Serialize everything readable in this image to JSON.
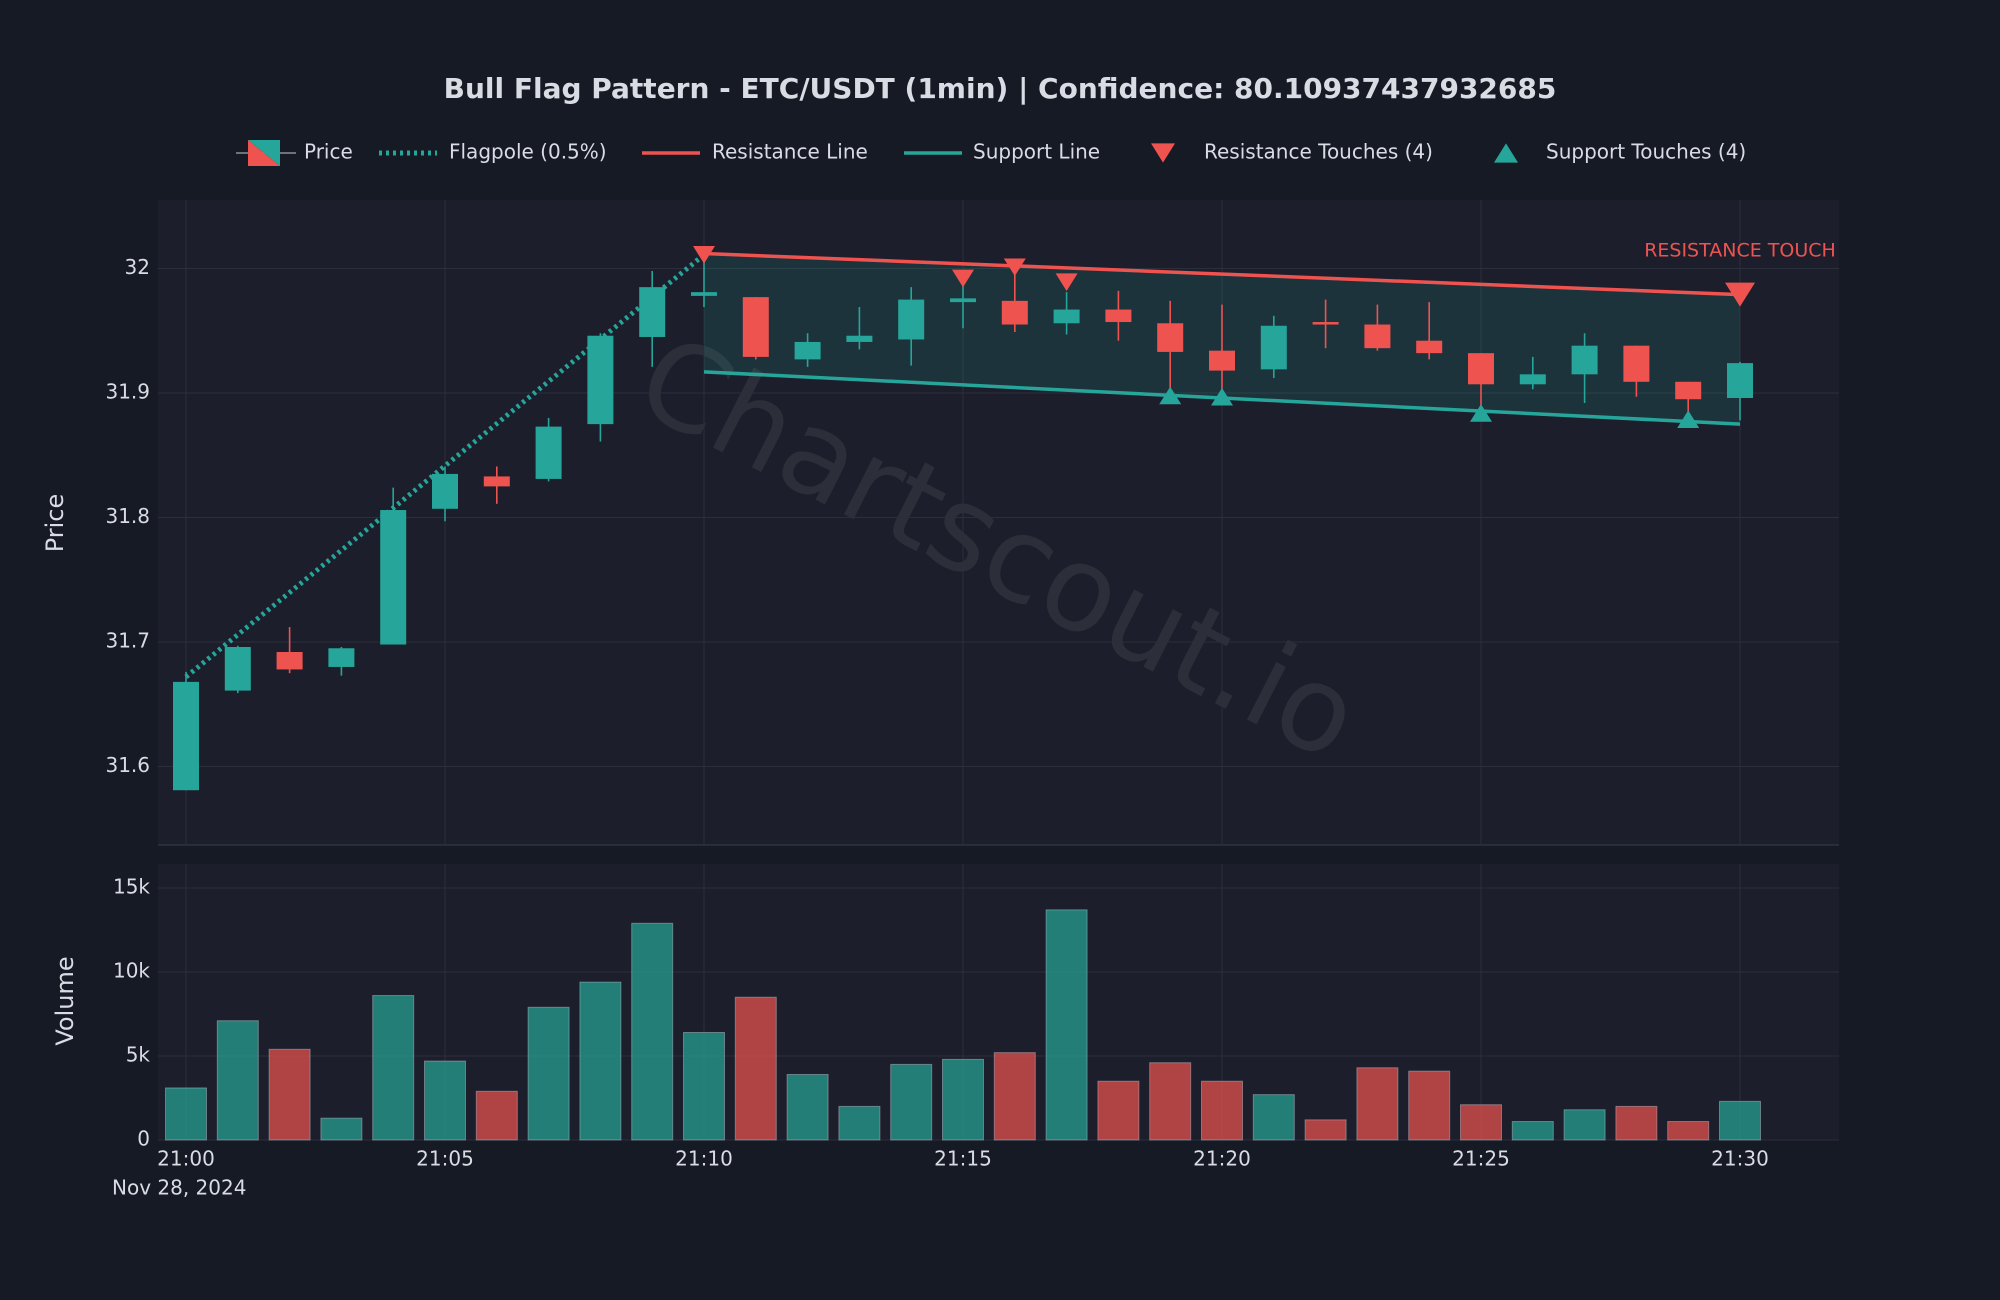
{
  "chart_data": {
    "type": "candlestick",
    "title": "Bull Flag Pattern - ETC/USDT (1min) | Confidence: 80.10937437932685",
    "ylabel": "Price",
    "x": [
      "21:00",
      "21:01",
      "21:02",
      "21:03",
      "21:04",
      "21:05",
      "21:06",
      "21:07",
      "21:08",
      "21:09",
      "21:10",
      "21:11",
      "21:12",
      "21:13",
      "21:14",
      "21:15",
      "21:16",
      "21:17",
      "21:18",
      "21:19",
      "21:20",
      "21:21",
      "21:22",
      "21:23",
      "21:24",
      "21:25",
      "21:26",
      "21:27",
      "21:28",
      "21:29",
      "21:30"
    ],
    "xticks": [
      "21:00",
      "21:05",
      "21:10",
      "21:15",
      "21:20",
      "21:25",
      "21:30"
    ],
    "date_label": "Nov 28, 2024",
    "ylim": [
      31.537,
      32.055
    ],
    "yticks": [
      31.6,
      31.7,
      31.8,
      31.9,
      32
    ],
    "grid": true,
    "name": "Price",
    "up_color": "#26a69a",
    "down_color": "#ef5350",
    "ohlc": {
      "open": [
        31.581,
        31.661,
        31.692,
        31.68,
        31.698,
        31.807,
        31.833,
        31.831,
        31.875,
        31.945,
        31.978,
        31.977,
        31.927,
        31.941,
        31.943,
        31.973,
        31.974,
        31.956,
        31.967,
        31.956,
        31.934,
        31.919,
        31.957,
        31.955,
        31.942,
        31.932,
        31.907,
        31.915,
        31.938,
        31.909,
        31.896
      ],
      "high": [
        31.676,
        31.697,
        31.712,
        31.696,
        31.824,
        31.841,
        31.841,
        31.88,
        31.948,
        31.998,
        32.006,
        31.977,
        31.948,
        31.969,
        31.985,
        31.997,
        32.003,
        31.981,
        31.982,
        31.974,
        31.971,
        31.962,
        31.975,
        31.971,
        31.973,
        31.932,
        31.929,
        31.948,
        31.938,
        31.909,
        31.925
      ],
      "low": [
        31.581,
        31.659,
        31.675,
        31.673,
        31.698,
        31.797,
        31.811,
        31.829,
        31.861,
        31.921,
        31.969,
        31.927,
        31.921,
        31.935,
        31.922,
        31.952,
        31.949,
        31.947,
        31.942,
        31.896,
        31.896,
        31.912,
        31.936,
        31.934,
        31.927,
        31.885,
        31.903,
        31.892,
        31.897,
        31.878,
        31.878
      ],
      "close": [
        31.668,
        31.696,
        31.678,
        31.695,
        31.806,
        31.835,
        31.825,
        31.873,
        31.946,
        31.985,
        31.981,
        31.929,
        31.941,
        31.946,
        31.975,
        31.976,
        31.955,
        31.967,
        31.957,
        31.933,
        31.918,
        31.954,
        31.955,
        31.936,
        31.932,
        31.907,
        31.915,
        31.938,
        31.909,
        31.895,
        31.924
      ]
    },
    "series": [
      {
        "name": "Flagpole (0.5%)",
        "kind": "dotted-line",
        "color": "#26a69a",
        "x": [
          "21:00",
          "21:10"
        ],
        "values": [
          31.672,
          32.011
        ]
      },
      {
        "name": "Resistance Line",
        "kind": "line",
        "color": "#ef5350",
        "x": [
          "21:10",
          "21:30"
        ],
        "values": [
          32.012,
          31.979
        ]
      },
      {
        "name": "Support Line",
        "kind": "line",
        "color": "#26a69a",
        "x": [
          "21:10",
          "21:30"
        ],
        "values": [
          31.917,
          31.875
        ]
      },
      {
        "name": "Resistance Touches (4)",
        "kind": "down-marker",
        "color": "#ef5350",
        "x": [
          "21:10",
          "21:15",
          "21:16",
          "21:17"
        ],
        "values": [
          32.011,
          31.992,
          32.001,
          31.989
        ]
      },
      {
        "name": "Support Touches (4)",
        "kind": "up-marker",
        "color": "#26a69a",
        "x": [
          "21:19",
          "21:20",
          "21:25",
          "21:29"
        ],
        "values": [
          31.898,
          31.897,
          31.884,
          31.879
        ]
      }
    ],
    "annotation": {
      "text": "RESISTANCE TOUCH",
      "x": "21:30",
      "value": 31.979,
      "color": "#ef5350"
    },
    "watermark": "Chartscout.io",
    "volume": {
      "ylabel": "Volume",
      "ylim": [
        0,
        16430
      ],
      "yticks": [
        0,
        {
          "value": 5000,
          "label": "5k"
        },
        {
          "value": 10000,
          "label": "10k"
        },
        {
          "value": 15000,
          "label": "15k"
        }
      ],
      "values": [
        3100,
        7100,
        5400,
        1300,
        8600,
        4700,
        2900,
        7900,
        9400,
        12900,
        6400,
        8500,
        3900,
        2000,
        4500,
        4800,
        5200,
        13700,
        3500,
        4600,
        3500,
        2700,
        1200,
        4300,
        4100,
        2100,
        1100,
        1800,
        2000,
        1100,
        2300
      ]
    }
  }
}
